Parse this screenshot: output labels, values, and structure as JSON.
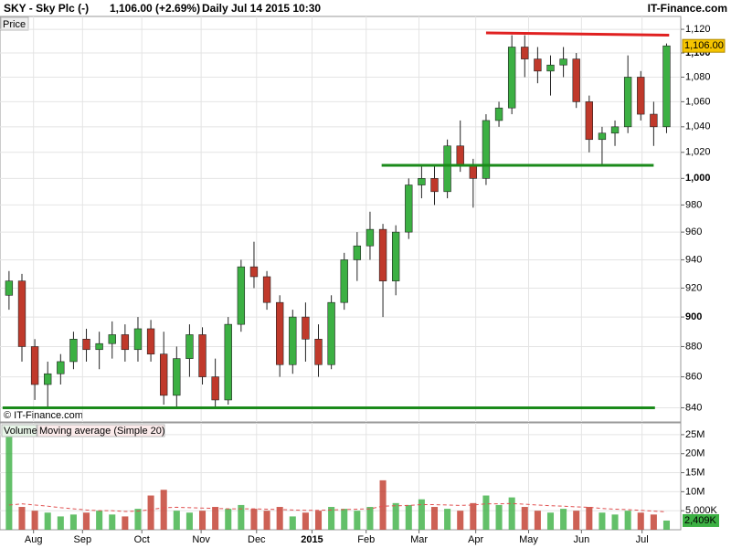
{
  "chart_data": [
    {
      "type": "candlestick",
      "title": "SKY - Sky Plc (-)",
      "subtitle": "1,106.00 (+2.69%)",
      "interval": "Daily",
      "date": "Jul 14 2015 10:30",
      "source": "IT-Finance.com",
      "y_label": "Price",
      "watermark": "© IT-Finance.com",
      "log_scale": true,
      "grid": true,
      "up_color": "#3cb043",
      "down_color": "#c0392b",
      "open": [
        915,
        925,
        880,
        855,
        862,
        870,
        885,
        878,
        882,
        888,
        878,
        892,
        875,
        848,
        872,
        888,
        860,
        845,
        895,
        935,
        928,
        910,
        868,
        900,
        885,
        868,
        910,
        940,
        950,
        962,
        925,
        960,
        995,
        1000,
        990,
        1025,
        1010,
        1000,
        1045,
        1055,
        1105,
        1095,
        1085,
        1090,
        1095,
        1060,
        1030,
        1035,
        1040,
        1080,
        1050,
        1040
      ],
      "high": [
        932,
        930,
        885,
        870,
        875,
        890,
        892,
        890,
        897,
        895,
        900,
        898,
        890,
        880,
        895,
        893,
        872,
        900,
        940,
        953,
        932,
        915,
        905,
        910,
        895,
        915,
        945,
        960,
        975,
        966,
        965,
        1000,
        1010,
        1010,
        1030,
        1045,
        1015,
        1050,
        1060,
        1115,
        1115,
        1105,
        1098,
        1105,
        1100,
        1065,
        1040,
        1045,
        1098,
        1085,
        1060,
        1108
      ],
      "low": [
        905,
        870,
        845,
        840,
        855,
        865,
        870,
        865,
        872,
        870,
        870,
        870,
        842,
        840,
        860,
        855,
        840,
        842,
        890,
        920,
        905,
        860,
        862,
        870,
        860,
        865,
        905,
        925,
        940,
        900,
        915,
        955,
        985,
        980,
        985,
        1005,
        978,
        995,
        1040,
        1050,
        1080,
        1075,
        1065,
        1080,
        1055,
        1020,
        1010,
        1025,
        1035,
        1045,
        1025,
        1035
      ],
      "close": [
        925,
        880,
        855,
        862,
        870,
        885,
        878,
        882,
        888,
        878,
        892,
        875,
        848,
        872,
        888,
        860,
        845,
        895,
        935,
        928,
        910,
        868,
        900,
        885,
        868,
        910,
        940,
        950,
        962,
        925,
        960,
        995,
        1000,
        990,
        1025,
        1010,
        1000,
        1045,
        1055,
        1105,
        1095,
        1085,
        1090,
        1095,
        1060,
        1030,
        1035,
        1040,
        1080,
        1050,
        1040,
        1106
      ],
      "xlim": [
        -0.7,
        52.1
      ],
      "xticks": [
        {
          "value": 1.9,
          "label": "Aug"
        },
        {
          "value": 5.7,
          "label": "Sep"
        },
        {
          "value": 10.3,
          "label": "Oct"
        },
        {
          "value": 14.9,
          "label": "Nov"
        },
        {
          "value": 19.2,
          "label": "Dec"
        },
        {
          "value": 23.5,
          "label": "2015"
        },
        {
          "value": 27.7,
          "label": "Feb"
        },
        {
          "value": 31.8,
          "label": "Mar"
        },
        {
          "value": 36.2,
          "label": "Apr"
        },
        {
          "value": 40.3,
          "label": "May"
        },
        {
          "value": 44.4,
          "label": "Jun"
        },
        {
          "value": 49.1,
          "label": "Jul"
        }
      ],
      "ylim": [
        831,
        1131
      ],
      "yticks": [
        840,
        860,
        880,
        900,
        920,
        940,
        960,
        980,
        {
          "value": 1000,
          "label": "1,000"
        },
        {
          "value": 1020,
          "label": "1,020"
        },
        {
          "value": 1040,
          "label": "1,040"
        },
        {
          "value": 1060,
          "label": "1,060"
        },
        {
          "value": 1080,
          "label": "1,080"
        },
        {
          "value": 1100,
          "label": "1,100"
        },
        {
          "value": 1120,
          "label": "1,120"
        }
      ],
      "last_value": {
        "value": 1106,
        "label": "1,106.00"
      },
      "trendlines": [
        {
          "color": "#e02020",
          "x": [
            37.0,
            51.2
          ],
          "y": [
            1117,
            1115
          ]
        },
        {
          "color": "#1a8a1a",
          "x": [
            28.9,
            50.0
          ],
          "y": [
            1010,
            1010
          ]
        },
        {
          "color": "#1a8a1a",
          "x": [
            -0.5,
            50.1
          ],
          "y": [
            840,
            840
          ]
        }
      ]
    },
    {
      "type": "bar",
      "series": [
        {
          "name": "Volume",
          "color": "#3cb043",
          "values": [
            26000000,
            6000000,
            5000000,
            4500000,
            3500000,
            4000000,
            4500000,
            5000000,
            4000000,
            3500000,
            5500000,
            9000000,
            10500000,
            5000000,
            4500000,
            5000000,
            6000000,
            5500000,
            6500000,
            5500000,
            5000000,
            6000000,
            3500000,
            4500000,
            5000000,
            6000000,
            5500000,
            5000000,
            6000000,
            13000000,
            7000000,
            6500000,
            8000000,
            6000000,
            5500000,
            5000000,
            7000000,
            9000000,
            6500000,
            8500000,
            6000000,
            5000000,
            4500000,
            5500000,
            5000000,
            6000000,
            4500000,
            4000000,
            5000000,
            4500000,
            4000000,
            2409000
          ]
        },
        {
          "name": "Moving average (Simple 20)",
          "color": "#e05050",
          "values": [
            6500000,
            6800000,
            6500000,
            6200000,
            5800000,
            5500000,
            5200000,
            5000000,
            5000000,
            4800000,
            4900000,
            5300000,
            5800000,
            5900000,
            5800000,
            5700000,
            5600000,
            5500000,
            5500000,
            5500000,
            5400000,
            5300000,
            5200000,
            5100000,
            5100000,
            5200000,
            5300000,
            5400000,
            5500000,
            6200000,
            6300000,
            6400000,
            6600000,
            6600000,
            6500000,
            6400000,
            6500000,
            6800000,
            6800000,
            6900000,
            6700000,
            6500000,
            6300000,
            6200000,
            6000000,
            5900000,
            5600000,
            5400000,
            5300000,
            5100000,
            4900000,
            4700000
          ]
        }
      ],
      "ylim": [
        0,
        28100000
      ],
      "yticks": [
        {
          "value": 5000000,
          "label": "5,000K"
        },
        {
          "value": 10000000,
          "label": "10M"
        },
        {
          "value": 15000000,
          "label": "15M"
        },
        {
          "value": 20000000,
          "label": "20M"
        },
        {
          "value": 25000000,
          "label": "25M"
        }
      ],
      "last_value": {
        "value": 2409000,
        "label": "2,409K"
      }
    }
  ]
}
